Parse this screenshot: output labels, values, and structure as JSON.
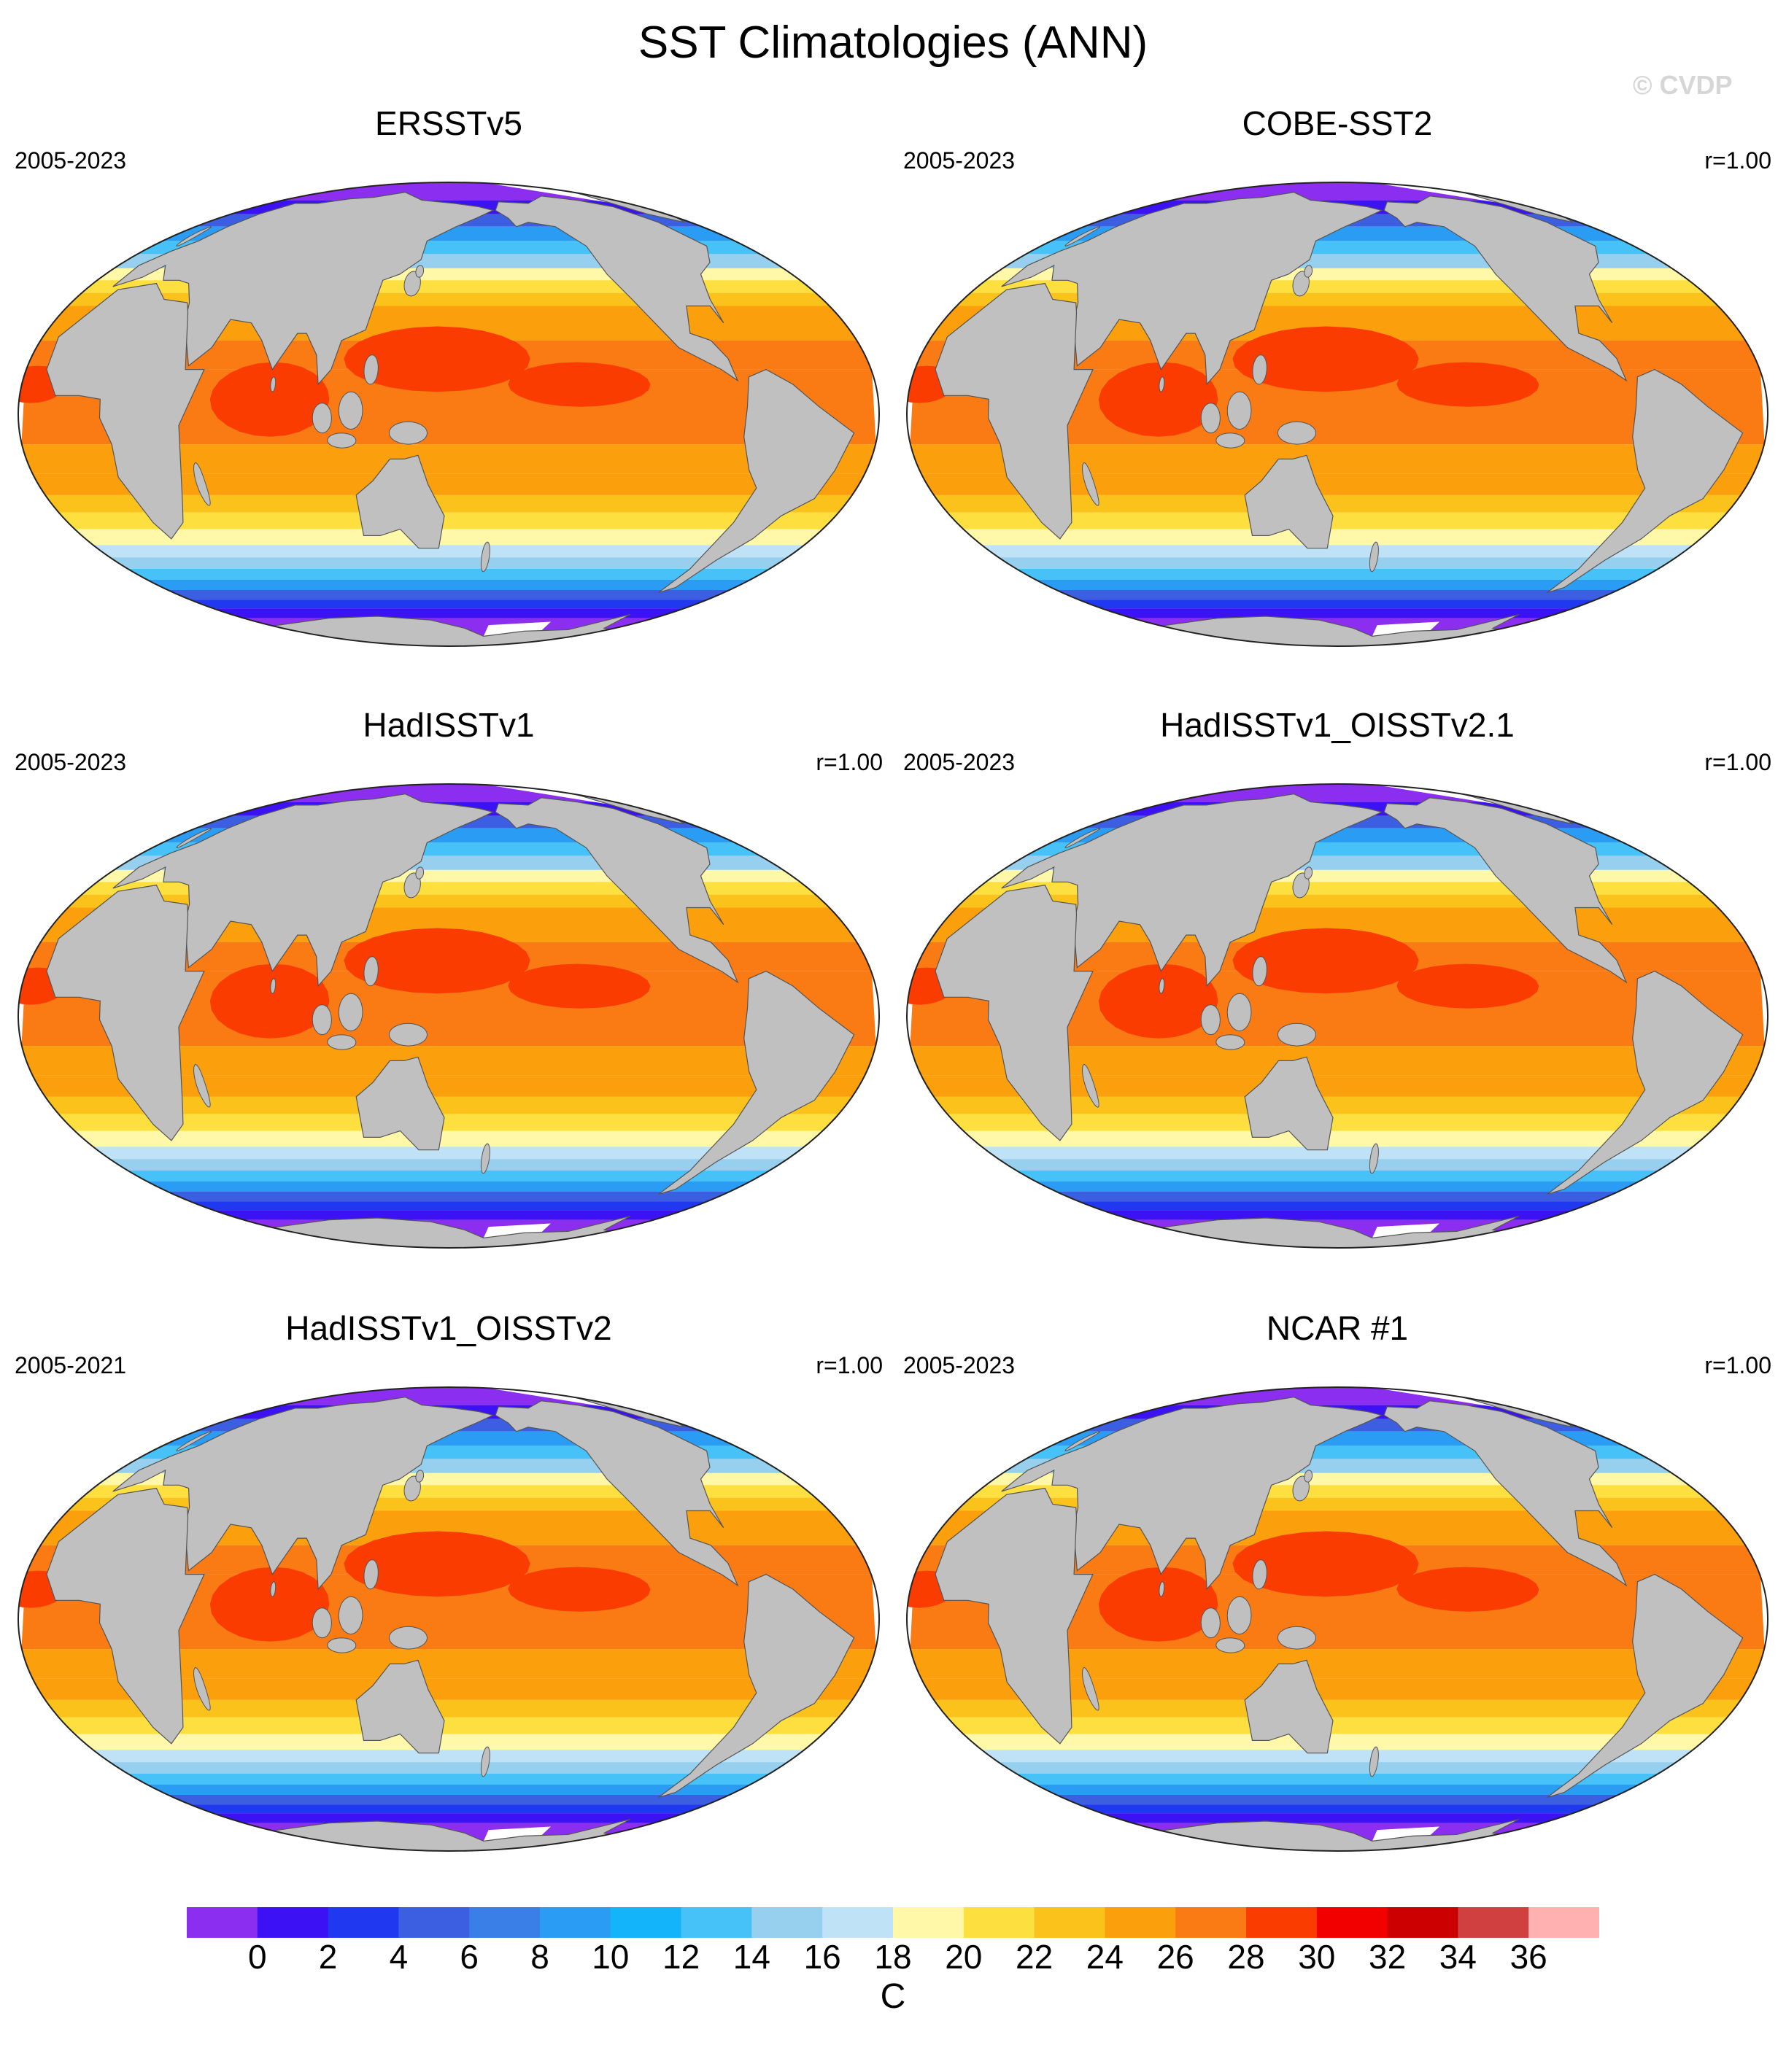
{
  "title": "SST Climatologies (ANN)",
  "watermark": "© CVDP",
  "colors": {
    "land": "#c0c0c0",
    "ice_white": "#ffffff",
    "coast": "#555555"
  },
  "panels": [
    {
      "title": "ERSSTv5",
      "period": "2005-2023",
      "corr": ""
    },
    {
      "title": "COBE-SST2",
      "period": "2005-2023",
      "corr": "r=1.00"
    },
    {
      "title": "HadISSTv1",
      "period": "2005-2023",
      "corr": "r=1.00"
    },
    {
      "title": "HadISSTv1_OISSTv2.1",
      "period": "2005-2023",
      "corr": "r=1.00"
    },
    {
      "title": "HadISSTv1_OISSTv2",
      "period": "2005-2021",
      "corr": "r=1.00"
    },
    {
      "title": "NCAR #1",
      "period": "2005-2023",
      "corr": "r=1.00"
    }
  ],
  "colorbar": {
    "units": "C",
    "labels": [
      "0",
      "2",
      "4",
      "6",
      "8",
      "10",
      "12",
      "14",
      "16",
      "18",
      "20",
      "22",
      "24",
      "26",
      "28",
      "30",
      "32",
      "34",
      "36"
    ],
    "colors": [
      "#8b2ef0",
      "#3c12f4",
      "#2038ef",
      "#3b5fe0",
      "#3a7fe8",
      "#2b9cf4",
      "#14b4fa",
      "#46c2f8",
      "#96d0ee",
      "#bfe2f6",
      "#fff8a8",
      "#fde040",
      "#fcc21c",
      "#fb9f0c",
      "#fa7a14",
      "#fa3c00",
      "#f20000",
      "#cc0000",
      "#d04040",
      "#ffb0b0"
    ]
  }
}
